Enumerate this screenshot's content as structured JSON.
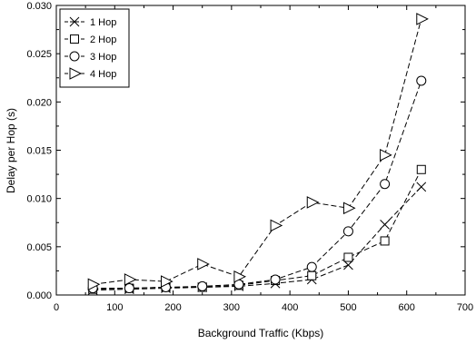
{
  "chart_data": {
    "type": "line",
    "title": "",
    "xlabel": "Background Traffic (Kbps)",
    "ylabel": "Delay per Hop (s)",
    "xlim": [
      0,
      700
    ],
    "ylim": [
      0,
      0.03
    ],
    "xticks": [
      "0",
      "100",
      "200",
      "300",
      "400",
      "500",
      "600",
      "700"
    ],
    "yticks": [
      "0.000",
      "0.005",
      "0.010",
      "0.015",
      "0.020",
      "0.025",
      "0.030"
    ],
    "grid": false,
    "legend_position": "top-left",
    "x": [
      62.5,
      125,
      187.5,
      250,
      312.5,
      375,
      437.5,
      500,
      562.5,
      625
    ],
    "series": [
      {
        "name": "1 Hop",
        "marker": "x",
        "color": "#000000",
        "values": [
          0.0005,
          0.0006,
          0.0007,
          0.0008,
          0.0009,
          0.0012,
          0.0016,
          0.0031,
          0.0073,
          0.0112
        ]
      },
      {
        "name": "2 Hop",
        "marker": "square",
        "color": "#000000",
        "values": [
          0.0006,
          0.0007,
          0.0008,
          0.0008,
          0.001,
          0.0015,
          0.002,
          0.0039,
          0.0056,
          0.013
        ]
      },
      {
        "name": "3 Hop",
        "marker": "circle",
        "color": "#000000",
        "values": [
          0.0007,
          0.0007,
          0.0008,
          0.0009,
          0.0011,
          0.0016,
          0.0029,
          0.0066,
          0.0115,
          0.0222
        ]
      },
      {
        "name": "4 Hop",
        "marker": "triangle-right",
        "color": "#000000",
        "values": [
          0.0011,
          0.0016,
          0.0014,
          0.0032,
          0.0019,
          0.0072,
          0.0096,
          0.009,
          0.0145,
          0.0286
        ]
      }
    ]
  }
}
